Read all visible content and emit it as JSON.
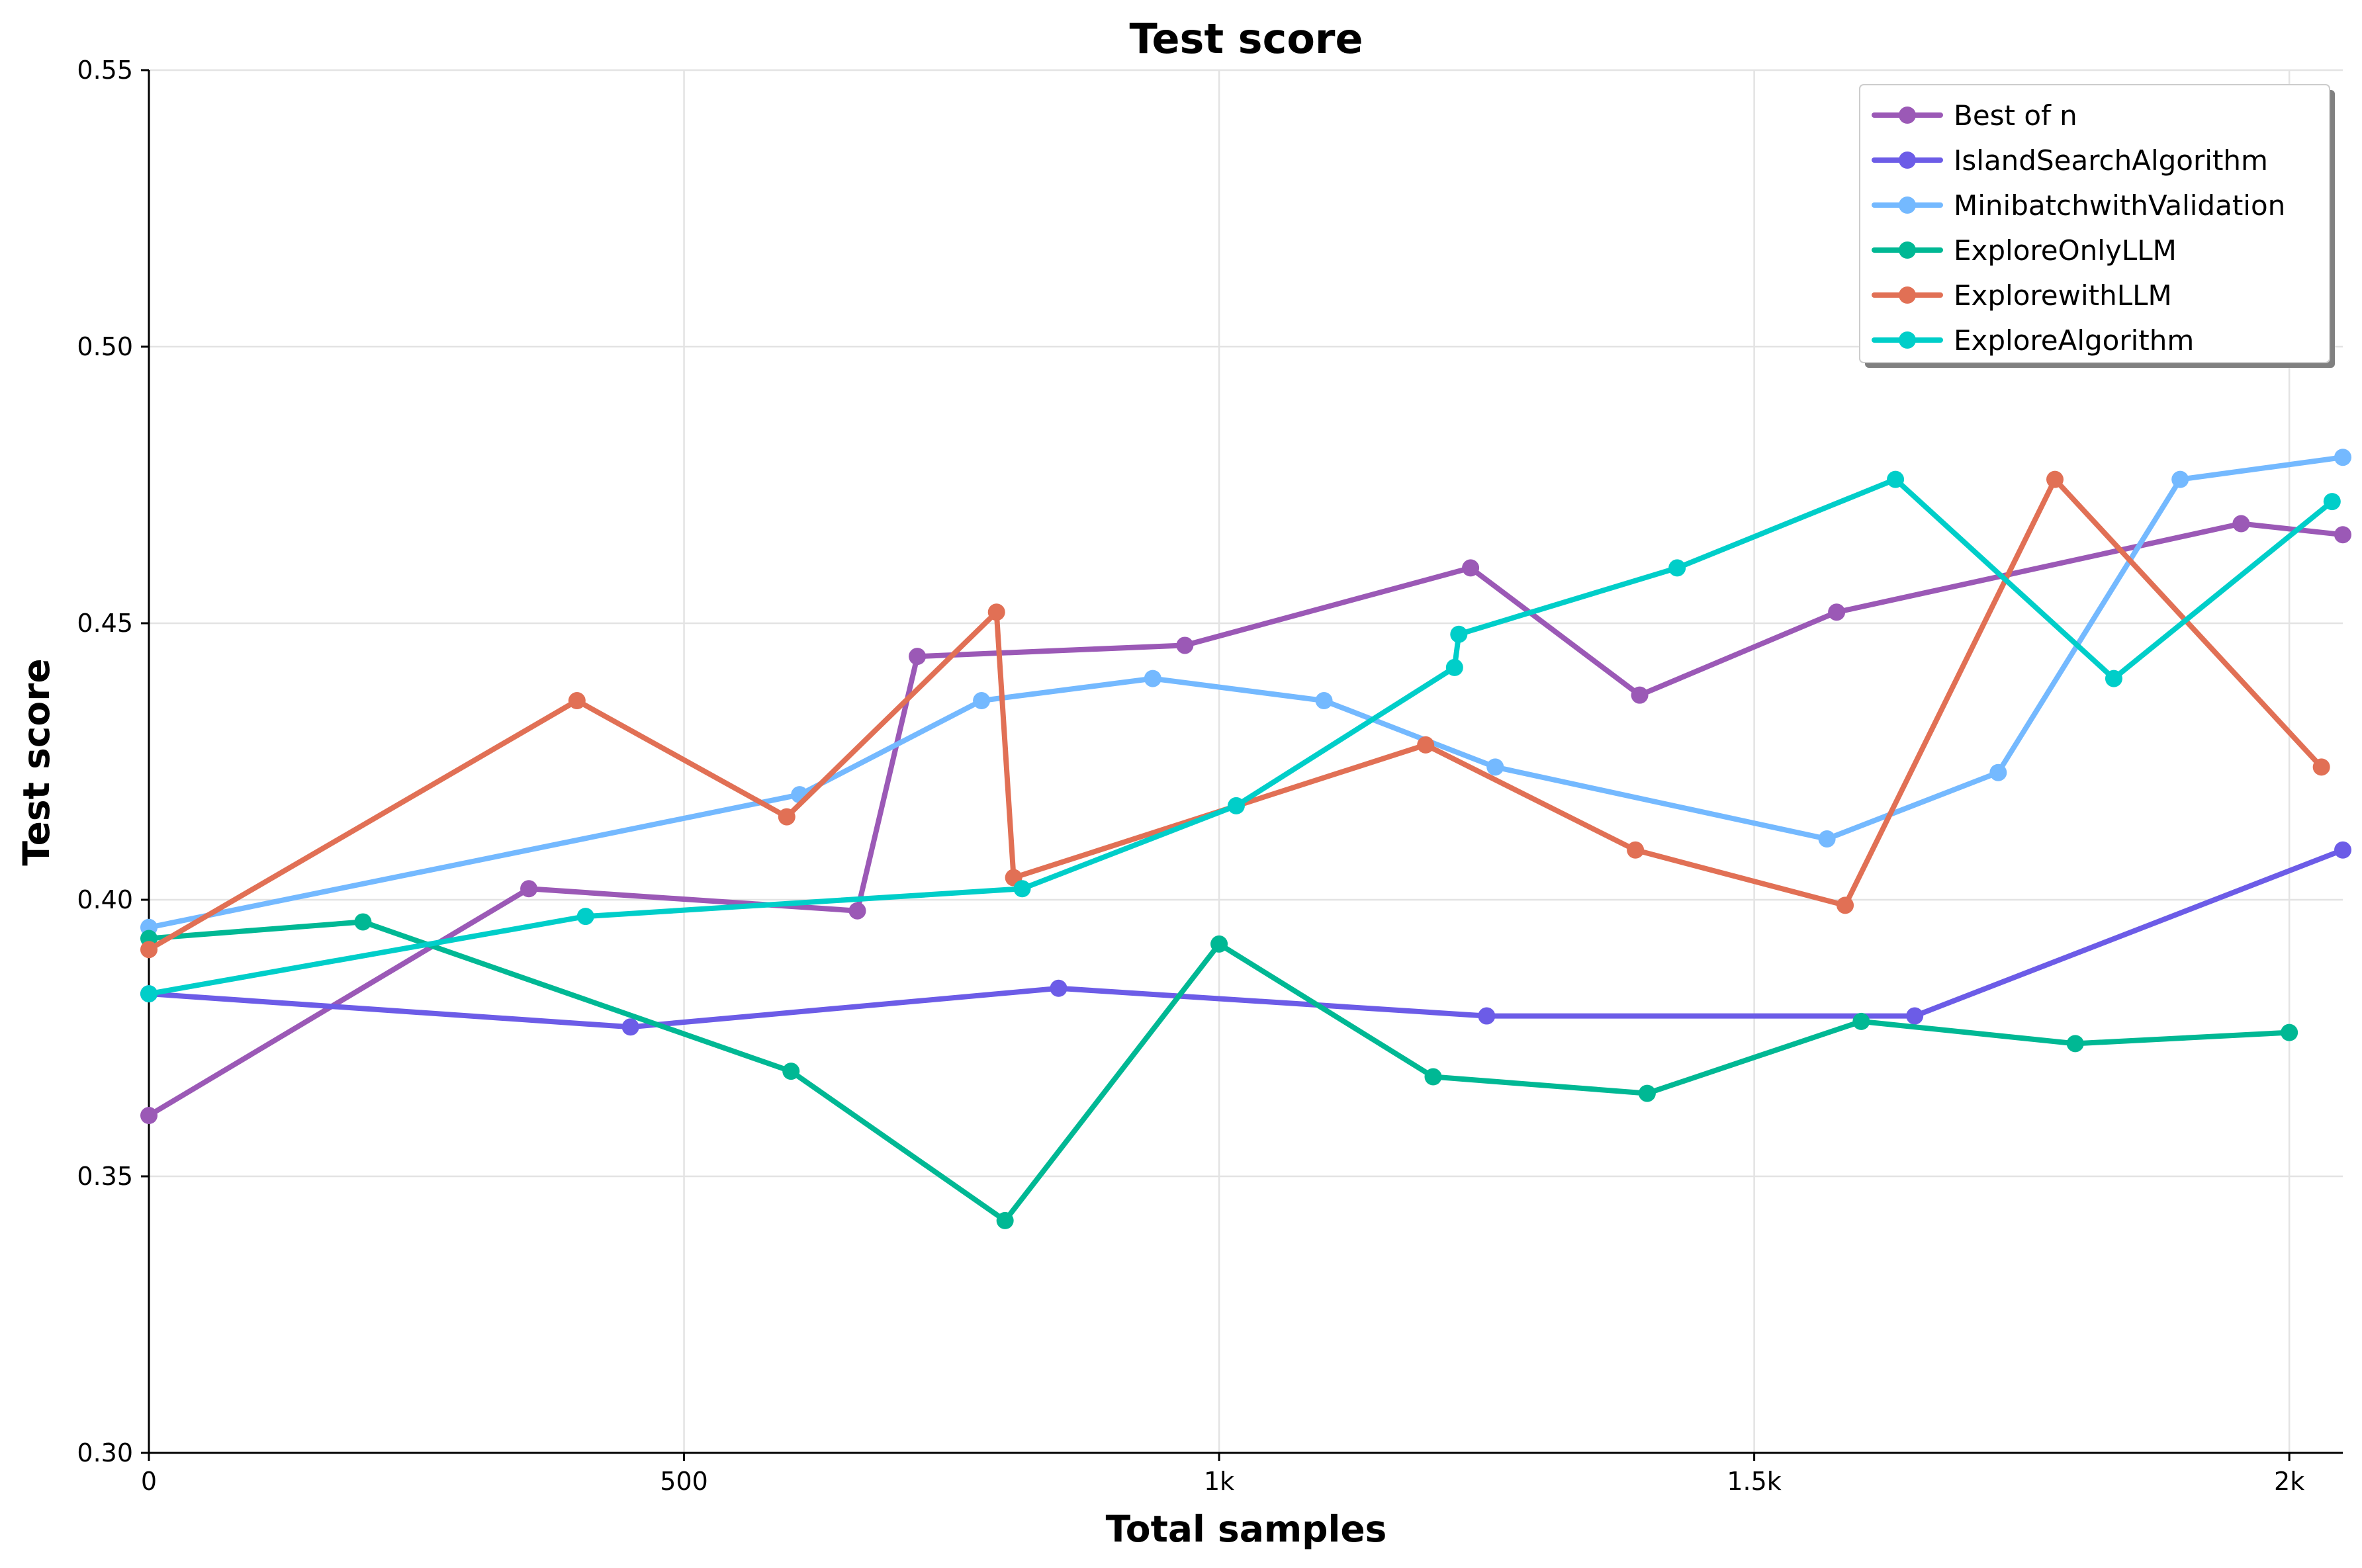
{
  "chart_data": {
    "type": "line",
    "title": "Test score",
    "xlabel": "Total samples",
    "ylabel": "Test score",
    "xlim": [
      0,
      2050
    ],
    "ylim": [
      0.3,
      0.55
    ],
    "x_ticks": [
      {
        "value": 0,
        "label": "0"
      },
      {
        "value": 500,
        "label": "500"
      },
      {
        "value": 1000,
        "label": "1k"
      },
      {
        "value": 1500,
        "label": "1.5k"
      },
      {
        "value": 2000,
        "label": "2k"
      }
    ],
    "y_ticks": [
      {
        "value": 0.3,
        "label": "0.30"
      },
      {
        "value": 0.35,
        "label": "0.35"
      },
      {
        "value": 0.4,
        "label": "0.40"
      },
      {
        "value": 0.45,
        "label": "0.45"
      },
      {
        "value": 0.5,
        "label": "0.50"
      },
      {
        "value": 0.55,
        "label": "0.55"
      }
    ],
    "grid": true,
    "legend_position": "top-right",
    "series": [
      {
        "name": "Best of n",
        "color": "#9b59b6",
        "points": [
          [
            0,
            0.361
          ],
          [
            355,
            0.402
          ],
          [
            662,
            0.398
          ],
          [
            718,
            0.444
          ],
          [
            968,
            0.446
          ],
          [
            1235,
            0.46
          ],
          [
            1393,
            0.437
          ],
          [
            1577,
            0.452
          ],
          [
            1955,
            0.468
          ],
          [
            2050,
            0.466
          ]
        ]
      },
      {
        "name": "IslandSearchAlgorithm",
        "color": "#6c5ce7",
        "points": [
          [
            0,
            0.383
          ],
          [
            450,
            0.377
          ],
          [
            850,
            0.384
          ],
          [
            1250,
            0.379
          ],
          [
            1650,
            0.379
          ],
          [
            2050,
            0.409
          ]
        ]
      },
      {
        "name": "MinibatchwithValidation",
        "color": "#74b9ff",
        "points": [
          [
            0,
            0.395
          ],
          [
            608,
            0.419
          ],
          [
            778,
            0.436
          ],
          [
            938,
            0.44
          ],
          [
            1098,
            0.436
          ],
          [
            1258,
            0.424
          ],
          [
            1568,
            0.411
          ],
          [
            1728,
            0.423
          ],
          [
            1898,
            0.476
          ],
          [
            2050,
            0.48
          ]
        ]
      },
      {
        "name": "ExploreOnlyLLM",
        "color": "#00b894",
        "points": [
          [
            0,
            0.393
          ],
          [
            200,
            0.396
          ],
          [
            600,
            0.369
          ],
          [
            800,
            0.342
          ],
          [
            1000,
            0.392
          ],
          [
            1200,
            0.368
          ],
          [
            1400,
            0.365
          ],
          [
            1600,
            0.378
          ],
          [
            1800,
            0.374
          ],
          [
            2000,
            0.376
          ]
        ]
      },
      {
        "name": "ExplorewithLLM",
        "color": "#e17055",
        "points": [
          [
            0,
            0.391
          ],
          [
            400,
            0.436
          ],
          [
            596,
            0.415
          ],
          [
            792,
            0.452
          ],
          [
            808,
            0.404
          ],
          [
            1193,
            0.428
          ],
          [
            1389,
            0.409
          ],
          [
            1585,
            0.399
          ],
          [
            1781,
            0.476
          ],
          [
            2030,
            0.424
          ]
        ]
      },
      {
        "name": "ExploreAlgorithm",
        "color": "#00cec9",
        "points": [
          [
            0,
            0.383
          ],
          [
            408,
            0.397
          ],
          [
            816,
            0.402
          ],
          [
            1016,
            0.417
          ],
          [
            1220,
            0.442
          ],
          [
            1224,
            0.448
          ],
          [
            1428,
            0.46
          ],
          [
            1632,
            0.476
          ],
          [
            1836,
            0.44
          ],
          [
            2040,
            0.472
          ]
        ]
      }
    ]
  }
}
